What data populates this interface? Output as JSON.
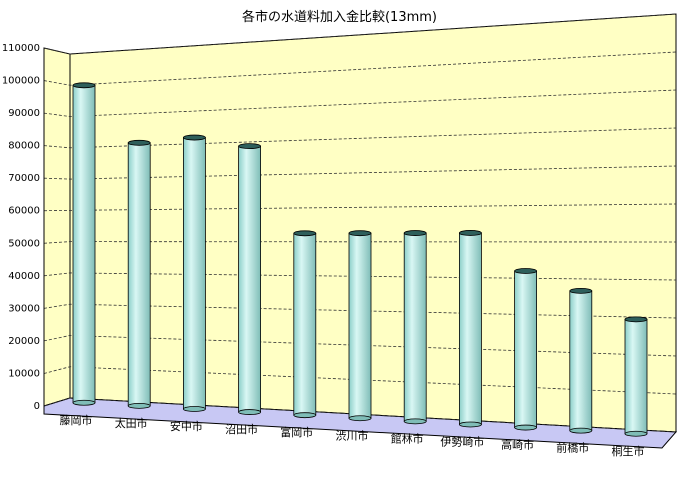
{
  "chart_data": {
    "type": "bar",
    "title": "各市の水道料加入金比較(13mm)",
    "xlabel": "",
    "ylabel": "",
    "ylim": [
      0,
      110000
    ],
    "yticks": [
      0,
      10000,
      20000,
      30000,
      40000,
      50000,
      60000,
      70000,
      80000,
      90000,
      100000,
      110000
    ],
    "categories": [
      "藤岡市",
      "太田市",
      "安中市",
      "沼田市",
      "富岡市",
      "渋川市",
      "館林市",
      "伊勢崎市",
      "高崎市",
      "前橋市",
      "桐生市"
    ],
    "values": [
      99750,
      80850,
      81900,
      78750,
      52500,
      52500,
      52500,
      52500,
      42000,
      36750,
      29400
    ],
    "grid": true,
    "legend": "none",
    "colors": {
      "bar": "#b4e8e4",
      "wall": "#ffffc4",
      "floor": "#c8c8f4",
      "grid": "#333333"
    }
  }
}
